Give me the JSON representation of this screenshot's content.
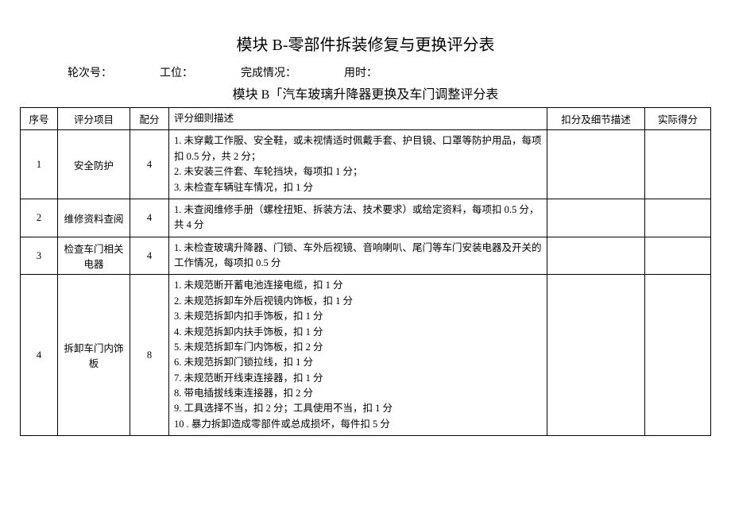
{
  "title": "模块 B-零部件拆装修复与更换评分表",
  "meta": {
    "round_label": "轮次号：",
    "station_label": "工位：",
    "status_label": "完成情况：",
    "time_label": "用时："
  },
  "subtitle": "模块 B「汽车玻璃升降器更换及车门调整评分表",
  "columns": {
    "idx": "序号",
    "item": "评分项目",
    "score": "配分",
    "desc": "评分细则描述",
    "deduct": "扣分及细节描述",
    "actual": "实际得分"
  },
  "rows": [
    {
      "idx": "1",
      "item": "安全防护",
      "score": "4",
      "desc": [
        "1. 未穿戴工作服、安全鞋，或未视情适时佩戴手套、护目镜、口罩等防护用品，每项扣 0.5 分，共 2 分；",
        "2. 未安装三件套、车轮挡块，每项扣 1 分；",
        "3. 未检查车辆驻车情况，扣 1 分"
      ]
    },
    {
      "idx": "2",
      "item": "维修资料查阅",
      "score": "4",
      "desc": [
        "1. 未查阅维修手册（螺栓扭矩、拆装方法、技术要求）或给定资料，每项扣 0.5 分，共 4 分"
      ]
    },
    {
      "idx": "3",
      "item": "检查车门相关电器",
      "score": "4",
      "desc": [
        "1. 未检查玻璃升降器、门锁、车外后视镜、音响喇叭、尾门等车门安装电器及开关的工作情况，每项扣 0.5 分"
      ]
    },
    {
      "idx": "4",
      "item": "拆卸车门内饰板",
      "score": "8",
      "desc": [
        "1. 未规范断开蓄电池连接电缆，扣 1 分",
        "2. 未规范拆卸车外后视镜内饰板，扣 1 分",
        "3. 未规范拆卸内扣手饰板，扣 1 分",
        "4. 未规范拆卸内扶手饰板，扣 1 分",
        "5. 未规范拆卸车门内饰板，扣 2 分",
        "6. 未规范拆卸门锁拉线，扣 1 分",
        "7. 未规范断开线束连接器，扣 1 分",
        "8. 带电插拔线束连接器，扣 2 分",
        "9. 工具选择不当，扣 2 分；工具使用不当，扣 1 分",
        "10 . 暴力拆卸造成零部件或总成损坏，每件扣 5 分"
      ]
    }
  ]
}
